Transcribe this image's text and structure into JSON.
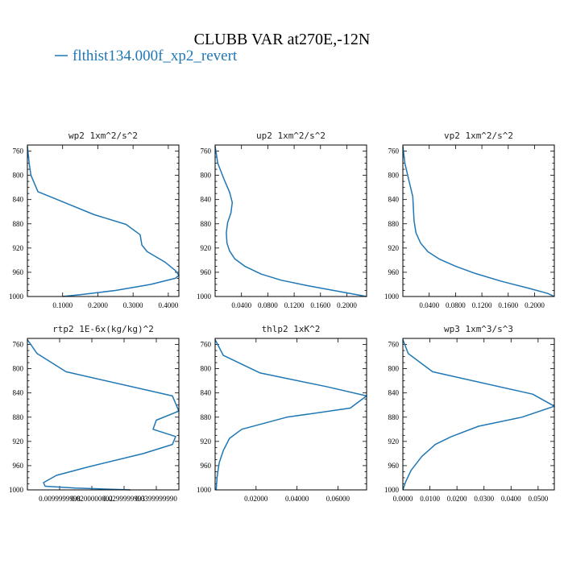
{
  "figure": {
    "title": "CLUBB VAR at270E,-12N",
    "legend_label": "flthist134.000f_xp2_revert",
    "series_color": "#1f77b4"
  },
  "chart_data": [
    {
      "type": "line",
      "title": "wp2  1xm^2/s^2",
      "xlim": [
        0.0,
        0.43
      ],
      "ylim": [
        1000,
        750
      ],
      "yticks": [
        "760",
        "800",
        "840",
        "880",
        "920",
        "960",
        "1000"
      ],
      "xticks": [
        {
          "value": 0.1,
          "label": "0.1000"
        },
        {
          "value": 0.2,
          "label": "0.2000"
        },
        {
          "value": 0.3,
          "label": "0.3000"
        },
        {
          "value": 0.4,
          "label": "0.4000"
        }
      ],
      "x": [
        0.0,
        0.005,
        0.01,
        0.03,
        0.11,
        0.19,
        0.28,
        0.32,
        0.325,
        0.34,
        0.39,
        0.42,
        0.43,
        0.42,
        0.35,
        0.25,
        0.15,
        0.1
      ],
      "y": [
        752,
        780,
        800,
        827,
        846,
        865,
        881,
        898,
        915,
        926,
        943,
        957,
        965,
        970,
        980,
        990,
        997,
        1000
      ]
    },
    {
      "type": "line",
      "title": "up2  1xm^2/s^2",
      "xlim": [
        0.0,
        0.23
      ],
      "ylim": [
        1000,
        750
      ],
      "yticks": [
        "760",
        "800",
        "840",
        "880",
        "920",
        "960",
        "1000"
      ],
      "xticks": [
        {
          "value": 0.04,
          "label": "0.0400"
        },
        {
          "value": 0.08,
          "label": "0.0800"
        },
        {
          "value": 0.12,
          "label": "0.1200"
        },
        {
          "value": 0.16,
          "label": "0.1600"
        },
        {
          "value": 0.2,
          "label": "0.2000"
        }
      ],
      "x": [
        0.0,
        0.004,
        0.013,
        0.022,
        0.026,
        0.024,
        0.019,
        0.017,
        0.018,
        0.022,
        0.03,
        0.045,
        0.07,
        0.1,
        0.14,
        0.18,
        0.21,
        0.23
      ],
      "y": [
        752,
        780,
        805,
        828,
        845,
        862,
        878,
        895,
        912,
        925,
        938,
        950,
        963,
        973,
        982,
        990,
        996,
        1000
      ]
    },
    {
      "type": "line",
      "title": "vp2  1xm^2/s^2",
      "xlim": [
        0.0,
        0.23
      ],
      "ylim": [
        1000,
        750
      ],
      "yticks": [
        "760",
        "800",
        "840",
        "880",
        "920",
        "960",
        "1000"
      ],
      "xticks": [
        {
          "value": 0.04,
          "label": "0.0400"
        },
        {
          "value": 0.08,
          "label": "0.0800"
        },
        {
          "value": 0.12,
          "label": "0.1200"
        },
        {
          "value": 0.16,
          "label": "0.1600"
        },
        {
          "value": 0.2,
          "label": "0.2000"
        }
      ],
      "x": [
        0.0,
        0.003,
        0.009,
        0.015,
        0.016,
        0.017,
        0.02,
        0.027,
        0.038,
        0.055,
        0.08,
        0.11,
        0.15,
        0.19,
        0.22,
        0.23
      ],
      "y": [
        752,
        780,
        808,
        835,
        855,
        875,
        895,
        912,
        926,
        938,
        950,
        962,
        975,
        986,
        995,
        1000
      ]
    },
    {
      "type": "line",
      "title": "rtp2  1E-6x(kg/kg)^2",
      "xlim": [
        0.0,
        0.047
      ],
      "ylim": [
        1000,
        750
      ],
      "yticks": [
        "760",
        "800",
        "840",
        "880",
        "920",
        "960",
        "1000"
      ],
      "xticks": [
        {
          "value": 0.01,
          "label": "0.0099999998"
        },
        {
          "value": 0.02,
          "label": "0.0200000002"
        },
        {
          "value": 0.03,
          "label": "0.0299999993"
        },
        {
          "value": 0.04,
          "label": "0.0399999990"
        }
      ],
      "x": [
        0.0,
        0.003,
        0.012,
        0.045,
        0.047,
        0.04,
        0.039,
        0.046,
        0.045,
        0.036,
        0.019,
        0.009,
        0.005,
        0.0055,
        0.015,
        0.032
      ],
      "y": [
        752,
        775,
        805,
        845,
        870,
        885,
        900,
        912,
        925,
        940,
        962,
        976,
        988,
        994,
        997,
        1000
      ]
    },
    {
      "type": "line",
      "title": "thlp2  1xK^2",
      "xlim": [
        0.0,
        0.074
      ],
      "ylim": [
        1000,
        750
      ],
      "yticks": [
        "760",
        "800",
        "840",
        "880",
        "920",
        "960",
        "1000"
      ],
      "xticks": [
        {
          "value": 0.02,
          "label": "0.02000"
        },
        {
          "value": 0.04,
          "label": "0.04000"
        },
        {
          "value": 0.06,
          "label": "0.06000"
        }
      ],
      "x": [
        0.0,
        0.004,
        0.022,
        0.055,
        0.074,
        0.066,
        0.035,
        0.013,
        0.007,
        0.004,
        0.002,
        0.001,
        0.0005
      ],
      "y": [
        752,
        778,
        807,
        830,
        845,
        865,
        880,
        900,
        915,
        935,
        955,
        978,
        1000
      ]
    },
    {
      "type": "line",
      "title": "wp3  1xm^3/s^3",
      "xlim": [
        0.0,
        0.056
      ],
      "ylim": [
        1000,
        750
      ],
      "yticks": [
        "760",
        "800",
        "840",
        "880",
        "920",
        "960",
        "1000"
      ],
      "xticks": [
        {
          "value": 0.0,
          "label": "0.0000"
        },
        {
          "value": 0.01,
          "label": "0.0100"
        },
        {
          "value": 0.02,
          "label": "0.0200"
        },
        {
          "value": 0.03,
          "label": "0.0300"
        },
        {
          "value": 0.04,
          "label": "0.0400"
        },
        {
          "value": 0.05,
          "label": "0.0500"
        }
      ],
      "x": [
        0.0,
        0.002,
        0.011,
        0.048,
        0.056,
        0.044,
        0.028,
        0.018,
        0.012,
        0.007,
        0.003,
        0.001,
        0.0
      ],
      "y": [
        752,
        775,
        805,
        842,
        862,
        880,
        895,
        912,
        925,
        945,
        968,
        987,
        1000
      ]
    }
  ]
}
